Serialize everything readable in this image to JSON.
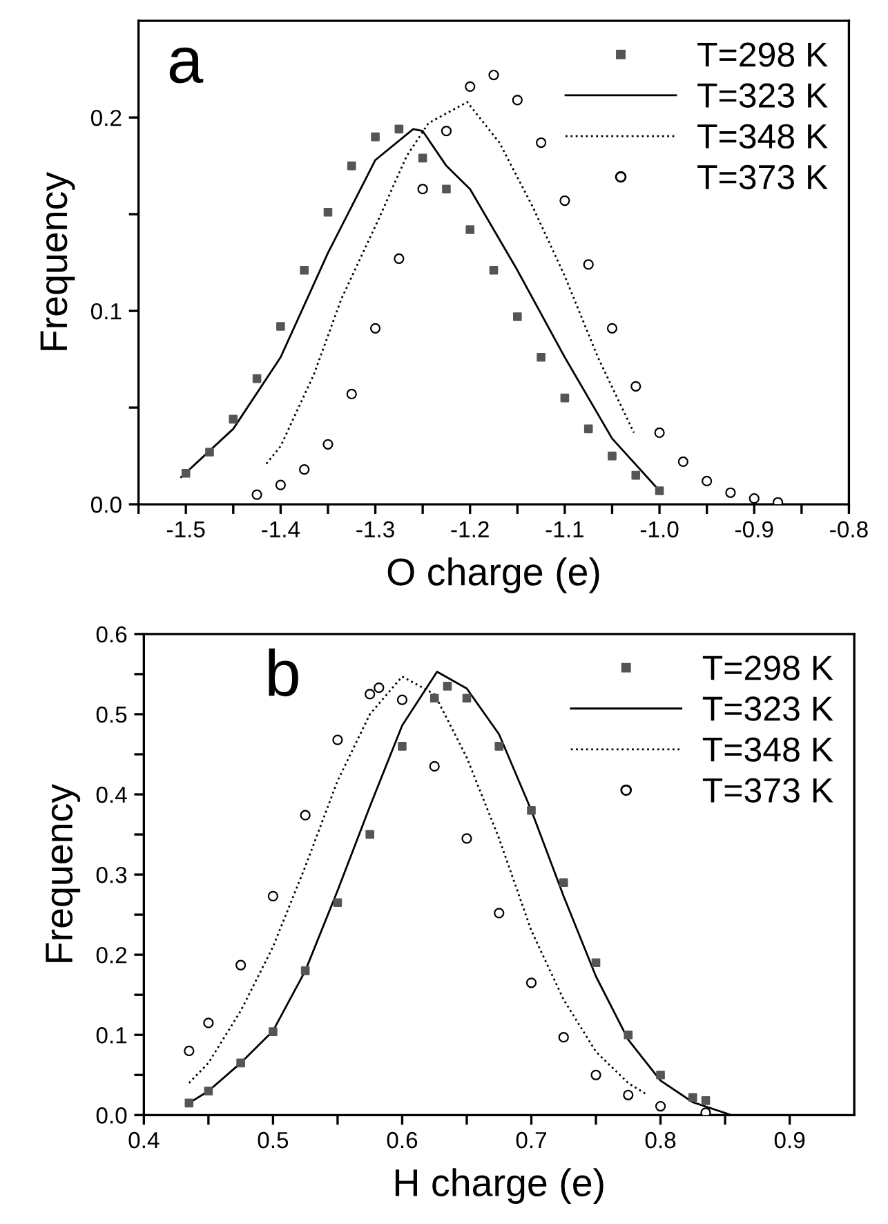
{
  "chart_data": [
    {
      "type": "line",
      "xlabel": "O charge (e)",
      "ylabel": "Frequency",
      "annotations": [
        "a"
      ],
      "xlim": [
        -1.55,
        -0.8
      ],
      "ylim": [
        0,
        0.25
      ],
      "xticks": [
        -1.5,
        -1.4,
        -1.3,
        -1.2,
        -1.1,
        {
          "value": -1.0,
          "label": "-1.0"
        },
        -0.9,
        -0.8,
        {
          "value": -1.55,
          "label": null
        },
        {
          "value": -1.45,
          "label": null
        },
        {
          "value": -1.35,
          "label": null
        },
        {
          "value": -1.25,
          "label": null
        },
        {
          "value": -1.15,
          "label": null
        },
        {
          "value": -1.05,
          "label": null
        },
        {
          "value": -0.95,
          "label": null
        },
        {
          "value": -0.85,
          "label": null
        }
      ],
      "yticks": [
        {
          "value": 0,
          "label": "0.0"
        },
        0.1,
        0.2,
        {
          "value": 0.05,
          "label": null
        },
        {
          "value": 0.15,
          "label": null
        }
      ],
      "grid": false,
      "legend": "top right",
      "series": [
        {
          "name": "T=298 K",
          "type": "scatter",
          "marker": "square",
          "color": "#555555",
          "x": [
            -1.5,
            -1.475,
            -1.45,
            -1.425,
            -1.4,
            -1.375,
            -1.35,
            -1.325,
            -1.3,
            -1.275,
            -1.25,
            -1.225,
            -1.2,
            -1.175,
            -1.15,
            -1.125,
            -1.1,
            -1.075,
            -1.05,
            -1.025,
            -1.0
          ],
          "values": [
            0.016,
            0.027,
            0.044,
            0.065,
            0.092,
            0.121,
            0.151,
            0.175,
            0.19,
            0.194,
            0.179,
            0.163,
            0.142,
            0.121,
            0.097,
            0.076,
            0.055,
            0.039,
            0.025,
            0.015,
            0.007
          ]
        },
        {
          "name": "T=323 K",
          "line_style": "solid",
          "marker": "none",
          "color": "#000000",
          "x": [
            -1.505,
            -1.45,
            -1.4,
            -1.35,
            -1.3,
            -1.26,
            -1.25,
            -1.225,
            -1.2,
            -1.15,
            -1.1,
            -1.05,
            -1.0
          ],
          "values": [
            0.014,
            0.039,
            0.076,
            0.13,
            0.178,
            0.194,
            0.193,
            0.175,
            0.163,
            0.121,
            0.076,
            0.034,
            0.007
          ]
        },
        {
          "name": "T=348 K",
          "line_style": "dotted",
          "marker": "none",
          "color": "#000000",
          "x": [
            -1.415,
            -1.4,
            -1.365,
            -1.336,
            -1.296,
            -1.267,
            -1.244,
            -1.203,
            -1.169,
            -1.134,
            -1.1,
            -1.065,
            -1.027
          ],
          "values": [
            0.021,
            0.03,
            0.067,
            0.106,
            0.148,
            0.18,
            0.197,
            0.208,
            0.187,
            0.154,
            0.118,
            0.076,
            0.037
          ]
        },
        {
          "name": "T=373 K",
          "type": "scatter",
          "marker": "circle",
          "color": "#000000",
          "x": [
            -1.425,
            -1.4,
            -1.375,
            -1.35,
            -1.325,
            -1.3,
            -1.275,
            -1.25,
            -1.225,
            -1.2,
            -1.175,
            -1.15,
            -1.125,
            -1.1,
            -1.075,
            -1.05,
            -1.025,
            -1.0,
            -0.975,
            -0.95,
            -0.925,
            -0.9,
            -0.875
          ],
          "values": [
            0.005,
            0.01,
            0.018,
            0.031,
            0.057,
            0.091,
            0.127,
            0.163,
            0.193,
            0.216,
            0.222,
            0.209,
            0.187,
            0.157,
            0.124,
            0.091,
            0.061,
            0.037,
            0.022,
            0.012,
            0.006,
            0.003,
            0.001
          ]
        }
      ]
    },
    {
      "type": "line",
      "xlabel": "H charge (e)",
      "ylabel": "Frequency",
      "annotations": [
        "b"
      ],
      "xlim": [
        0.4,
        0.95
      ],
      "ylim": [
        0,
        0.6
      ],
      "xticks": [
        0.4,
        0.5,
        0.6,
        0.7,
        0.8,
        0.9,
        {
          "value": 0.45,
          "label": null
        },
        {
          "value": 0.55,
          "label": null
        },
        {
          "value": 0.65,
          "label": null
        },
        {
          "value": 0.75,
          "label": null
        },
        {
          "value": 0.85,
          "label": null
        }
      ],
      "yticks": [
        {
          "value": 0,
          "label": "0.0"
        },
        0.1,
        0.2,
        0.3,
        0.4,
        0.5,
        0.6,
        {
          "value": 0.05,
          "label": null
        },
        {
          "value": 0.15,
          "label": null
        },
        {
          "value": 0.25,
          "label": null
        },
        {
          "value": 0.35,
          "label": null
        },
        {
          "value": 0.45,
          "label": null
        },
        {
          "value": 0.55,
          "label": null
        }
      ],
      "grid": false,
      "legend": "top right",
      "series": [
        {
          "name": "T=298 K",
          "type": "scatter",
          "marker": "square",
          "color": "#555555",
          "x": [
            0.435,
            0.45,
            0.475,
            0.5,
            0.525,
            0.55,
            0.575,
            0.6,
            0.625,
            0.635,
            0.65,
            0.675,
            0.7,
            0.725,
            0.75,
            0.775,
            0.8,
            0.825,
            0.835
          ],
          "values": [
            0.015,
            0.03,
            0.065,
            0.104,
            0.18,
            0.265,
            0.35,
            0.46,
            0.52,
            0.535,
            0.52,
            0.46,
            0.38,
            0.29,
            0.19,
            0.1,
            0.05,
            0.022,
            0.018
          ]
        },
        {
          "name": "T=323 K",
          "line_style": "solid",
          "marker": "none",
          "color": "#000000",
          "x": [
            0.435,
            0.45,
            0.475,
            0.5,
            0.525,
            0.55,
            0.575,
            0.6,
            0.627,
            0.65,
            0.675,
            0.7,
            0.725,
            0.75,
            0.775,
            0.8,
            0.825,
            0.855
          ],
          "values": [
            0.015,
            0.03,
            0.065,
            0.105,
            0.18,
            0.28,
            0.385,
            0.486,
            0.553,
            0.532,
            0.475,
            0.38,
            0.273,
            0.173,
            0.094,
            0.043,
            0.016,
            0.0
          ]
        },
        {
          "name": "T=348 K",
          "line_style": "dotted",
          "marker": "none",
          "color": "#000000",
          "x": [
            0.435,
            0.45,
            0.475,
            0.5,
            0.525,
            0.55,
            0.575,
            0.6,
            0.625,
            0.65,
            0.675,
            0.7,
            0.725,
            0.75,
            0.775,
            0.79
          ],
          "values": [
            0.04,
            0.065,
            0.13,
            0.21,
            0.31,
            0.417,
            0.5,
            0.547,
            0.525,
            0.446,
            0.345,
            0.23,
            0.144,
            0.079,
            0.04,
            0.025
          ]
        },
        {
          "name": "T=373 K",
          "type": "scatter",
          "marker": "circle",
          "color": "#000000",
          "x": [
            0.435,
            0.45,
            0.475,
            0.5,
            0.525,
            0.55,
            0.575,
            0.582,
            0.6,
            0.625,
            0.65,
            0.675,
            0.7,
            0.725,
            0.75,
            0.775,
            0.8,
            0.835
          ],
          "values": [
            0.08,
            0.115,
            0.187,
            0.273,
            0.374,
            0.468,
            0.525,
            0.533,
            0.518,
            0.435,
            0.345,
            0.252,
            0.165,
            0.097,
            0.05,
            0.025,
            0.011,
            0.003
          ]
        }
      ]
    }
  ]
}
